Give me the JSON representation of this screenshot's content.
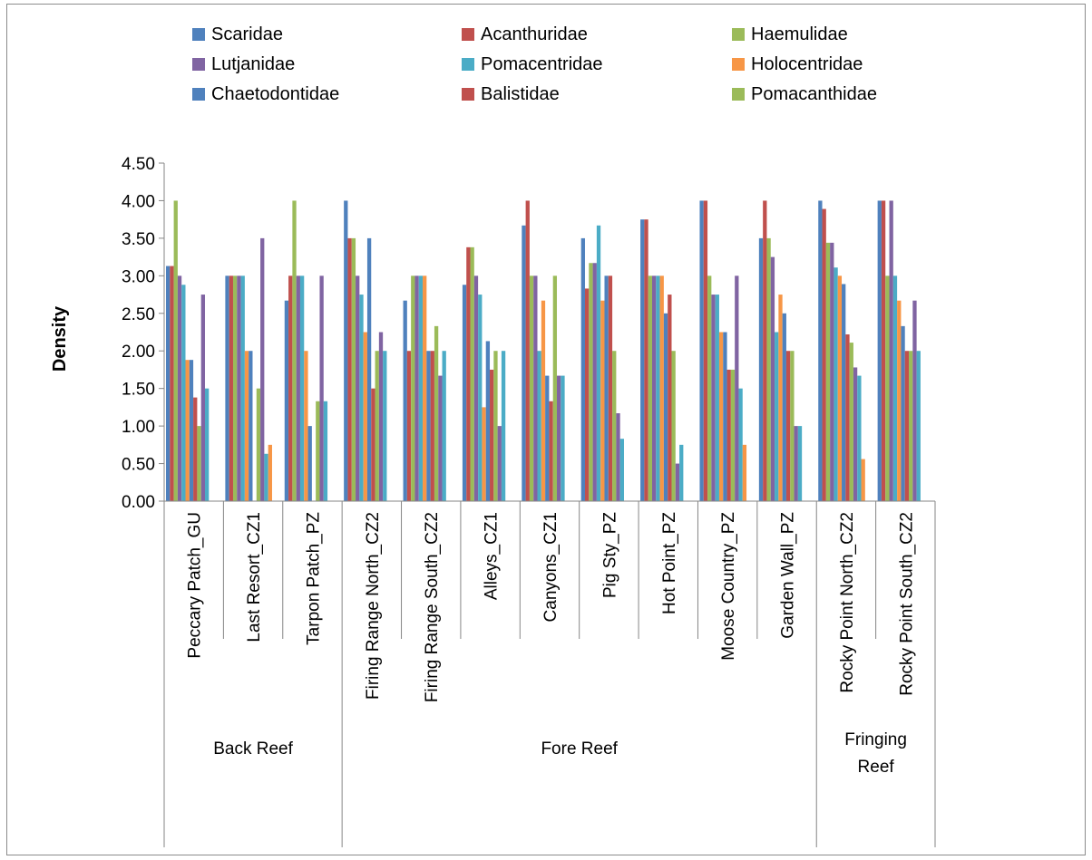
{
  "chart_data": {
    "type": "bar",
    "ylabel": "Density",
    "ylim": [
      0,
      4.5
    ],
    "yticks": [
      "0.00",
      "0.50",
      "1.00",
      "1.50",
      "2.00",
      "2.50",
      "3.00",
      "3.50",
      "4.00",
      "4.50"
    ],
    "grid": false,
    "legend": "top",
    "categories": [
      "Peccary Patch_GU",
      "Last Resort_CZ1",
      "Tarpon Patch_PZ",
      "Firing Range North_CZ2",
      "Firing Range South_CZ2",
      "Alleys_CZ1",
      "Canyons_CZ1",
      "Pig Sty_PZ",
      "Hot Point_PZ",
      "Moose Country_PZ",
      "Garden Wall_PZ",
      "Rocky Point North_CZ2",
      "Rocky Point South_CZ2"
    ],
    "groups": [
      {
        "label": "Back Reef",
        "span": 3
      },
      {
        "label": "Fore Reef",
        "span": 8
      },
      {
        "label": "Fringing Reef",
        "span": 2
      }
    ],
    "series": [
      {
        "name": "Scaridae",
        "color": "#4F81BD",
        "values": [
          3.13,
          3.0,
          2.67,
          4.0,
          2.67,
          2.88,
          3.67,
          3.5,
          3.75,
          4.0,
          3.5,
          4.0,
          4.0
        ]
      },
      {
        "name": "Acanthuridae",
        "color": "#C0504D",
        "values": [
          3.13,
          3.0,
          3.0,
          3.5,
          2.0,
          3.38,
          4.0,
          2.83,
          3.75,
          4.0,
          4.0,
          3.89,
          4.0
        ]
      },
      {
        "name": "Haemulidae",
        "color": "#9BBB59",
        "values": [
          4.0,
          3.0,
          4.0,
          3.5,
          3.0,
          3.38,
          3.0,
          3.17,
          3.0,
          3.0,
          3.5,
          3.44,
          3.0
        ]
      },
      {
        "name": "Lutjanidae",
        "color": "#8064A2",
        "values": [
          3.0,
          3.0,
          3.0,
          3.0,
          3.0,
          3.0,
          3.0,
          3.17,
          3.0,
          2.75,
          3.25,
          3.44,
          4.0
        ]
      },
      {
        "name": "Pomacentridae",
        "color": "#4BACC6",
        "values": [
          2.88,
          3.0,
          3.0,
          2.75,
          3.0,
          2.75,
          2.0,
          3.67,
          3.0,
          2.75,
          2.25,
          3.11,
          3.0
        ]
      },
      {
        "name": "Holocentridae",
        "color": "#F79646",
        "values": [
          1.88,
          2.0,
          2.0,
          2.25,
          3.0,
          1.25,
          2.67,
          2.67,
          3.0,
          2.25,
          2.75,
          3.0,
          2.67
        ]
      },
      {
        "name": "Chaetodontidae",
        "color": "#4F81BD",
        "values": [
          1.88,
          2.0,
          1.0,
          3.5,
          2.0,
          2.13,
          1.67,
          3.0,
          2.5,
          2.25,
          2.5,
          2.89,
          2.33
        ]
      },
      {
        "name": "Balistidae",
        "color": "#C0504D",
        "values": [
          1.38,
          0,
          0,
          1.5,
          2.0,
          1.75,
          1.33,
          3.0,
          2.75,
          1.75,
          2.0,
          2.22,
          2.0
        ]
      },
      {
        "name": "Pomacanthidae",
        "color": "#9BBB59",
        "values": [
          1.0,
          1.5,
          1.33,
          2.0,
          2.33,
          2.0,
          3.0,
          2.0,
          2.0,
          1.75,
          2.0,
          2.11,
          2.0
        ]
      },
      {
        "name": "",
        "color": "#8064A2",
        "values": [
          2.75,
          3.5,
          3.0,
          2.25,
          1.67,
          1.0,
          1.67,
          1.17,
          0.5,
          3.0,
          1.0,
          1.78,
          2.67
        ]
      },
      {
        "name": "",
        "color": "#4BACC6",
        "values": [
          1.5,
          0.63,
          1.33,
          2.0,
          2.0,
          2.0,
          1.67,
          0.83,
          0.75,
          1.5,
          1.0,
          1.67,
          2.0
        ]
      },
      {
        "name": "",
        "color": "#F79646",
        "values": [
          0,
          0.75,
          0,
          0,
          0,
          0,
          0,
          0,
          0,
          0.75,
          0,
          0.56,
          0
        ]
      }
    ]
  }
}
